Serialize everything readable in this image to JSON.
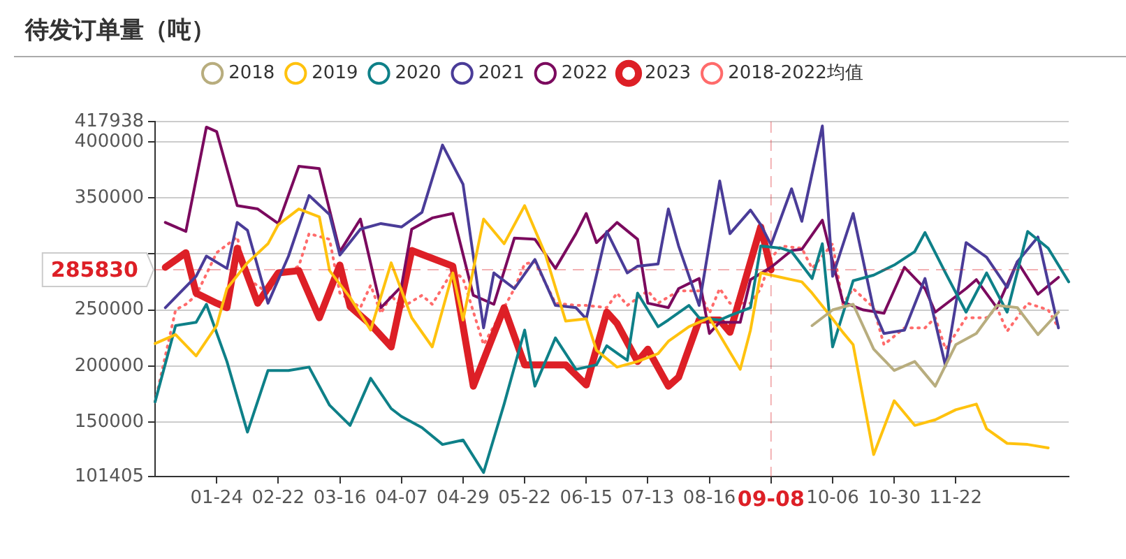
{
  "chart_data": {
    "type": "line",
    "title": "待发订单量（吨）",
    "categories": [
      null,
      null,
      null,
      null,
      null,
      null,
      "01-24",
      null,
      null,
      null,
      null,
      null,
      "02-22",
      null,
      null,
      null,
      null,
      null,
      "03-16",
      null,
      null,
      null,
      null,
      null,
      "04-07",
      null,
      null,
      null,
      null,
      null,
      "04-29",
      null,
      null,
      null,
      null,
      null,
      "05-22",
      null,
      null,
      null,
      null,
      null,
      "06-15",
      null,
      null,
      null,
      null,
      null,
      "07-13",
      null,
      null,
      null,
      null,
      null,
      "08-16",
      null,
      null,
      null,
      null,
      null,
      "09-08",
      null,
      null,
      null,
      null,
      null,
      "10-06",
      null,
      null,
      null,
      null,
      null,
      "10-30",
      null,
      null,
      null,
      null,
      null,
      "11-22",
      null,
      null,
      null,
      null,
      null,
      null,
      null,
      null,
      null,
      null,
      null
    ],
    "series": [
      {
        "name": "2018",
        "color": "#b8ad7e",
        "values": [
          null,
          null,
          null,
          null,
          null,
          null,
          null,
          null,
          null,
          null,
          null,
          null,
          null,
          null,
          null,
          null,
          null,
          null,
          null,
          null,
          null,
          null,
          null,
          null,
          null,
          null,
          null,
          null,
          null,
          null,
          null,
          null,
          null,
          null,
          null,
          null,
          null,
          null,
          null,
          null,
          null,
          null,
          null,
          null,
          null,
          null,
          null,
          null,
          null,
          null,
          null,
          null,
          null,
          null,
          null,
          null,
          null,
          null,
          null,
          null,
          null,
          null,
          null,
          null,
          236000,
          null,
          250000,
          null,
          255000,
          null,
          215000,
          null,
          196000,
          null,
          204000,
          null,
          182000,
          null,
          219000,
          null,
          229000,
          null,
          254000,
          null,
          252000,
          null,
          228000,
          null,
          248000,
          null
        ]
      },
      {
        "name": "2019",
        "color": "#ffc20e",
        "values": [
          220000,
          null,
          228000,
          null,
          209000,
          null,
          236000,
          269000,
          null,
          292000,
          null,
          309000,
          326000,
          null,
          340000,
          null,
          333000,
          285000,
          null,
          261000,
          null,
          232000,
          null,
          292000,
          null,
          243000,
          null,
          217000,
          null,
          283000,
          241000,
          null,
          331000,
          null,
          309000,
          null,
          343000,
          null,
          300000,
          null,
          240000,
          null,
          242000,
          214000,
          null,
          199000,
          null,
          204000,
          null,
          211000,
          222000,
          null,
          235000,
          null,
          243000,
          null,
          null,
          197000,
          232000,
          283000,
          null,
          279000,
          null,
          275000,
          265000,
          null,
          242000,
          230000,
          219000,
          null,
          121000,
          null,
          169000,
          null,
          147000,
          null,
          152000,
          null,
          161000,
          null,
          166000,
          144000,
          null,
          131000,
          null,
          130000,
          null,
          127000,
          null,
          null
        ]
      },
      {
        "name": "2020",
        "color": "#0e8088",
        "values": [
          168000,
          null,
          236000,
          null,
          239000,
          255000,
          null,
          204000,
          null,
          141000,
          null,
          196000,
          null,
          196000,
          null,
          199000,
          null,
          165000,
          null,
          147000,
          null,
          189000,
          null,
          162000,
          155000,
          null,
          145000,
          null,
          130000,
          null,
          134000,
          null,
          105000,
          null,
          166000,
          null,
          232000,
          182000,
          null,
          225000,
          null,
          197000,
          null,
          201000,
          218000,
          null,
          205000,
          265000,
          null,
          235000,
          241000,
          null,
          254000,
          243000,
          null,
          241000,
          245000,
          null,
          252000,
          307000,
          null,
          305000,
          302000,
          null,
          278000,
          309000,
          217000,
          null,
          276000,
          null,
          281000,
          null,
          290000,
          null,
          302000,
          319000,
          null,
          283000,
          null,
          248000,
          null,
          283000,
          null,
          248000,
          null,
          320000,
          null,
          305000,
          null,
          275000
        ]
      },
      {
        "name": "2021",
        "color": "#4a3c98",
        "values": [
          null,
          252000,
          null,
          null,
          280000,
          298000,
          null,
          287000,
          328000,
          321000,
          null,
          256000,
          null,
          298000,
          null,
          352000,
          null,
          335000,
          299000,
          null,
          322000,
          null,
          327000,
          null,
          324000,
          null,
          337000,
          null,
          397000,
          null,
          362000,
          null,
          234000,
          283000,
          null,
          269000,
          null,
          295000,
          null,
          254000,
          null,
          252000,
          242000,
          null,
          320000,
          null,
          283000,
          289000,
          null,
          291000,
          340000,
          307000,
          null,
          254000,
          null,
          365000,
          318000,
          null,
          339000,
          326000,
          308000,
          null,
          358000,
          329000,
          null,
          414000,
          280000,
          null,
          336000,
          null,
          250000,
          229000,
          null,
          232000,
          null,
          278000,
          null,
          200000,
          null,
          310000,
          null,
          297000,
          null,
          270000,
          293000,
          null,
          315000,
          null,
          234000,
          null
        ]
      },
      {
        "name": "2022",
        "color": "#7b0a5e",
        "values": [
          null,
          328000,
          null,
          320000,
          null,
          413000,
          409000,
          null,
          343000,
          null,
          340000,
          null,
          327000,
          null,
          378000,
          null,
          376000,
          null,
          302000,
          null,
          331000,
          null,
          252000,
          null,
          271000,
          322000,
          null,
          332000,
          null,
          336000,
          null,
          263000,
          null,
          255000,
          null,
          314000,
          null,
          313000,
          null,
          287000,
          null,
          318000,
          336000,
          310000,
          null,
          328000,
          null,
          313000,
          256000,
          null,
          252000,
          269000,
          null,
          278000,
          229000,
          239000,
          null,
          239000,
          277000,
          null,
          288000,
          null,
          303000,
          304000,
          null,
          330000,
          null,
          257000,
          null,
          250000,
          null,
          247000,
          null,
          288000,
          null,
          269000,
          248000,
          null,
          null,
          269000,
          277000,
          null,
          252000,
          null,
          293000,
          null,
          264000,
          null,
          279000,
          null
        ]
      },
      {
        "name": "2023",
        "color": "#dd1f26",
        "values": [
          null,
          288000,
          null,
          301000,
          265000,
          null,
          256000,
          252000,
          305000,
          null,
          256000,
          null,
          283000,
          null,
          285000,
          null,
          243000,
          null,
          290000,
          253000,
          null,
          237000,
          null,
          217000,
          null,
          303000,
          null,
          null,
          null,
          289000,
          null,
          182000,
          null,
          null,
          252000,
          null,
          201000,
          null,
          null,
          null,
          201000,
          null,
          183000,
          null,
          248000,
          238000,
          null,
          204000,
          215000,
          null,
          182000,
          190000,
          null,
          241000,
          null,
          241000,
          230000,
          null,
          null,
          324000,
          285830,
          null,
          null,
          null,
          null,
          null,
          null,
          null,
          null,
          null,
          null,
          null,
          null,
          null,
          null,
          null,
          null,
          null,
          null,
          null,
          null,
          null,
          null,
          null,
          null,
          null,
          null,
          null,
          null,
          null
        ]
      },
      {
        "name": "2018-2022均值",
        "color": "#ff6b6b",
        "line_style": "dotted",
        "values": [
          168000,
          null,
          250000,
          255000,
          263000,
          null,
          301000,
          null,
          315000,
          278000,
          null,
          265000,
          280000,
          null,
          289000,
          318000,
          null,
          313000,
          265000,
          null,
          252000,
          272000,
          247000,
          263000,
          252000,
          null,
          263000,
          255000,
          null,
          285000,
          278000,
          null,
          219000,
          null,
          252000,
          269000,
          291000,
          293000,
          null,
          256000,
          null,
          254000,
          254000,
          null,
          252000,
          265000,
          254000,
          null,
          267000,
          256000,
          null,
          267000,
          null,
          267000,
          247000,
          269000,
          256000,
          null,
          256000,
          269000,
          296000,
          307000,
          null,
          305000,
          287000,
          null,
          309000,
          255000,
          269000,
          null,
          252000,
          219000,
          null,
          234000,
          null,
          234000,
          243000,
          215000,
          null,
          243000,
          null,
          243000,
          252000,
          231000,
          null,
          256000,
          null,
          250000,
          234000,
          null
        ]
      }
    ],
    "ylim": [
      101405,
      417938
    ],
    "yticks": [
      101405,
      150000,
      200000,
      250000,
      {
        "value": 300000,
        "label": null
      },
      350000,
      400000,
      417938
    ],
    "grid": "y",
    "legend": "top",
    "line_style": "solid",
    "ref_lines": [
      {
        "axis": "y",
        "value": 285830,
        "label": "285830",
        "color": "#dd1f26",
        "line_style": "dashed"
      },
      {
        "axis": "x",
        "value": "09-08",
        "color": "#dd1f26",
        "line_style": "dashed"
      }
    ]
  }
}
